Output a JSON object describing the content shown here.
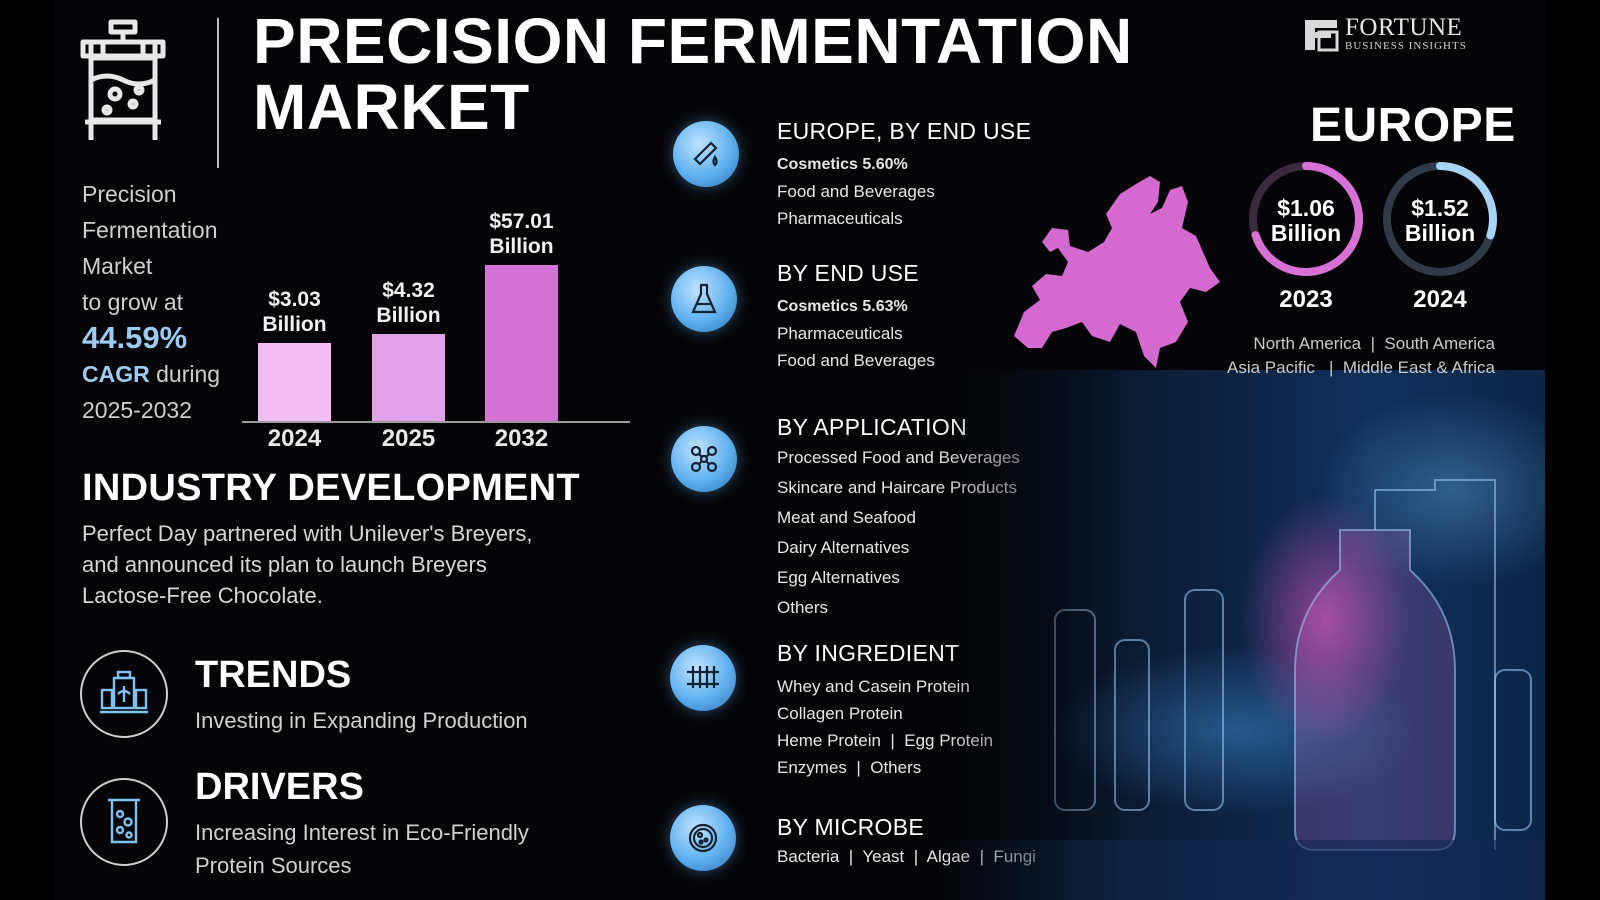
{
  "header": {
    "title_line1": "PRECISION FERMENTATION",
    "title_line2": "MARKET",
    "brand_name": "FORTUNE",
    "brand_sub": "BUSINESS INSIGHTS"
  },
  "intro": {
    "line1": "Precision",
    "line2": "Fermentation",
    "line3": "Market",
    "line4": "to grow at",
    "cagr_value": "44.59%",
    "cagr_label": "CAGR",
    "during": " during",
    "period": "2025-2032"
  },
  "chart_data": {
    "type": "bar",
    "categories": [
      "2024",
      "2025",
      "2032"
    ],
    "values": [
      3.03,
      4.32,
      57.01
    ],
    "data_labels": [
      "$3.03\nBillion",
      "$4.32\nBillion",
      "$57.01\nBillion"
    ],
    "value_line1": [
      "$3.03",
      "$4.32",
      "$57.01"
    ],
    "value_line2": [
      "Billion",
      "Billion",
      "Billion"
    ],
    "colors": [
      "#f0bcf1",
      "#e3a2e7",
      "#d473d6"
    ]
  },
  "industry": {
    "title": "INDUSTRY DEVELOPMENT",
    "line1": "Perfect Day partnered with Unilever's Breyers,",
    "line2": "and announced  its plan to launch Breyers",
    "line3": "Lactose-Free Chocolate."
  },
  "trends": {
    "title": "TRENDS",
    "text": "Investing in Expanding Production",
    "icon": "production-plant-icon"
  },
  "drivers": {
    "title": "DRIVERS",
    "line1": "Increasing Interest in Eco-Friendly",
    "line2": "Protein Sources",
    "icon": "beaker-icon"
  },
  "segments": [
    {
      "title": "EUROPE, BY END USE",
      "icon": "test-tube-drop-icon",
      "lines": [
        "Cosmetics 5.60%",
        "Food and Beverages",
        "Pharmaceuticals"
      ]
    },
    {
      "title": "BY END USE",
      "icon": "flask-icon",
      "lines": [
        "Cosmetics 5.63%",
        "Pharmaceuticals",
        "Food and Beverages"
      ]
    },
    {
      "title": "BY APPLICATION",
      "icon": "molecule-icon",
      "lines": [
        "Processed Food and Beverages",
        "Skincare and Haircare Products",
        "Meat and Seafood",
        "Dairy Alternatives",
        "Egg Alternatives",
        "Others"
      ]
    },
    {
      "title": "BY INGREDIENT",
      "icon": "test-tube-rack-icon",
      "lines": [
        "Whey and Casein Protein",
        "Collagen Protein",
        "Heme Protein  |  Egg Protein",
        "Enzymes  |  Others"
      ]
    },
    {
      "title": "BY MICROBE",
      "icon": "petri-dish-icon",
      "lines": [
        "Bacteria  |  Yeast  |  Algae  |  Fungi"
      ]
    }
  ],
  "europe": {
    "title": "EUROPE",
    "ring1": {
      "value": "$1.06",
      "unit": "Billion",
      "year": "2023",
      "fill": 0.7
    },
    "ring2": {
      "value": "$1.52",
      "unit": "Billion",
      "year": "2024",
      "fill": 0.3
    },
    "regions_line1": "North America  |  South America",
    "regions_line2": "Asia Pacific   |  Middle East & Africa",
    "map_color": "#d46ad0"
  }
}
